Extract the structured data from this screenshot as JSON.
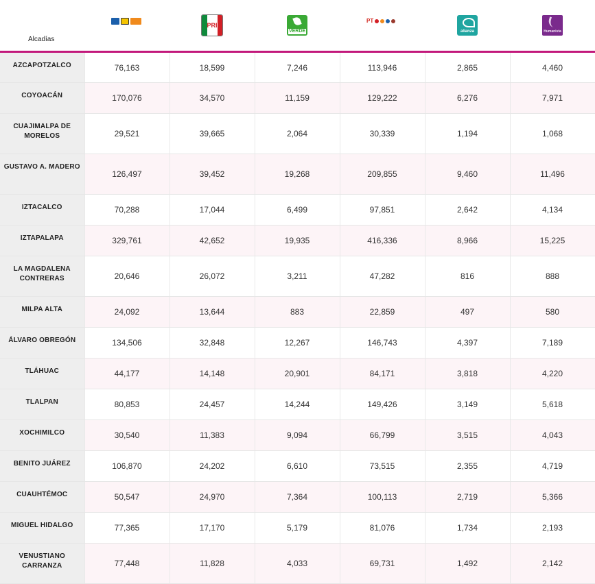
{
  "header": {
    "alcaldias_label": "Alcadías",
    "parties": [
      {
        "icon": "pan-prd-mc-coalition-logo-icon",
        "text": ""
      },
      {
        "icon": "pri-logo-icon",
        "text": "PRI"
      },
      {
        "icon": "pvem-verde-logo-icon",
        "text": "VERDE"
      },
      {
        "icon": "pt-morena-coalition-logo-icon",
        "text": "PT"
      },
      {
        "icon": "nueva-alianza-logo-icon",
        "text": "alianza"
      },
      {
        "icon": "humanista-logo-icon",
        "text": "Humanista"
      }
    ]
  },
  "colors": {
    "accent": "#c2187b",
    "name_cell_bg": "#eeeeee",
    "alt_row_bg": "#fdf4f7"
  },
  "rows": [
    {
      "name": "AZCAPOTZALCO",
      "values": [
        "76,163",
        "18,599",
        "7,246",
        "113,946",
        "2,865",
        "4,460"
      ]
    },
    {
      "name": "COYOACÁN",
      "values": [
        "170,076",
        "34,570",
        "11,159",
        "129,222",
        "6,276",
        "7,971"
      ]
    },
    {
      "name": "CUAJIMALPA DE MORELOS",
      "values": [
        "29,521",
        "39,665",
        "2,064",
        "30,339",
        "1,194",
        "1,068"
      ]
    },
    {
      "name": "GUSTAVO A. MADERO",
      "values": [
        "126,497",
        "39,452",
        "19,268",
        "209,855",
        "9,460",
        "11,496"
      ]
    },
    {
      "name": "IZTACALCO",
      "values": [
        "70,288",
        "17,044",
        "6,499",
        "97,851",
        "2,642",
        "4,134"
      ]
    },
    {
      "name": "IZTAPALAPA",
      "values": [
        "329,761",
        "42,652",
        "19,935",
        "416,336",
        "8,966",
        "15,225"
      ]
    },
    {
      "name": "LA MAGDALENA CONTRERAS",
      "values": [
        "20,646",
        "26,072",
        "3,211",
        "47,282",
        "816",
        "888"
      ]
    },
    {
      "name": "MILPA ALTA",
      "values": [
        "24,092",
        "13,644",
        "883",
        "22,859",
        "497",
        "580"
      ]
    },
    {
      "name": "ÁLVARO OBREGÓN",
      "values": [
        "134,506",
        "32,848",
        "12,267",
        "146,743",
        "4,397",
        "7,189"
      ]
    },
    {
      "name": "TLÁHUAC",
      "values": [
        "44,177",
        "14,148",
        "20,901",
        "84,171",
        "3,818",
        "4,220"
      ]
    },
    {
      "name": "TLALPAN",
      "values": [
        "80,853",
        "24,457",
        "14,244",
        "149,426",
        "3,149",
        "5,618"
      ]
    },
    {
      "name": "XOCHIMILCO",
      "values": [
        "30,540",
        "11,383",
        "9,094",
        "66,799",
        "3,515",
        "4,043"
      ]
    },
    {
      "name": "BENITO JUÁREZ",
      "values": [
        "106,870",
        "24,202",
        "6,610",
        "73,515",
        "2,355",
        "4,719"
      ]
    },
    {
      "name": "CUAUHTÉMOC",
      "values": [
        "50,547",
        "24,970",
        "7,364",
        "100,113",
        "2,719",
        "5,366"
      ]
    },
    {
      "name": "MIGUEL HIDALGO",
      "values": [
        "77,365",
        "17,170",
        "5,179",
        "81,076",
        "1,734",
        "2,193"
      ]
    },
    {
      "name": "VENUSTIANO CARRANZA",
      "values": [
        "77,448",
        "11,828",
        "4,033",
        "69,731",
        "1,492",
        "2,142"
      ]
    }
  ]
}
